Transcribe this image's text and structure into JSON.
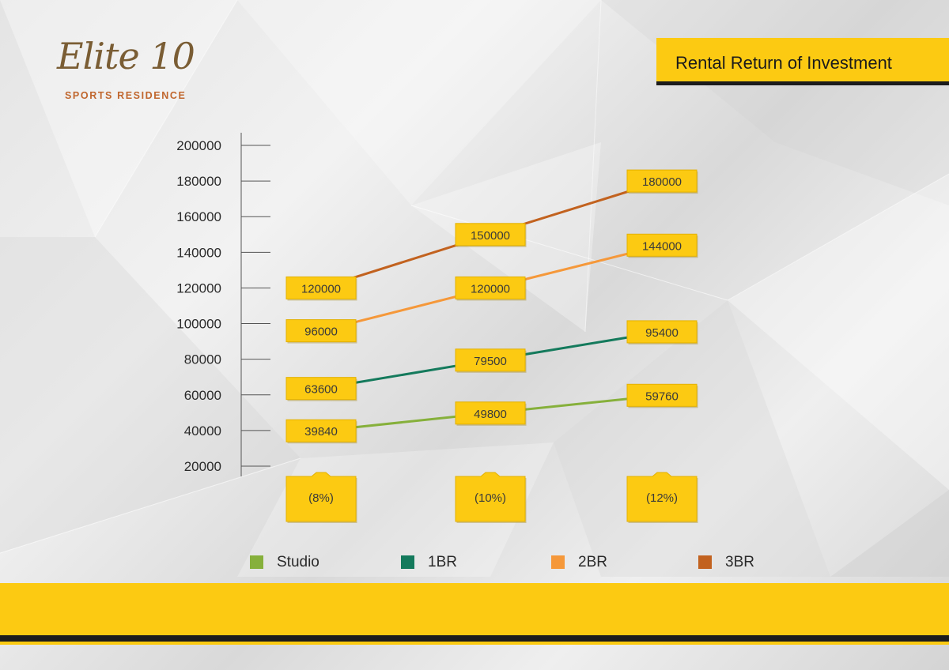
{
  "branding": {
    "logo_script": "Elite 10",
    "logo_subtitle": "SPORTS RESIDENCE"
  },
  "header": {
    "title": "Rental Return of Investment"
  },
  "colors": {
    "accent_yellow": "#fcca12",
    "dark": "#1c1c1c",
    "studio": "#86b03b",
    "1br": "#147a5c",
    "2br": "#f5983a",
    "3br": "#c2621f"
  },
  "chart_data": {
    "type": "line",
    "title": "Rental Return of Investment",
    "xlabel": "",
    "ylabel": "",
    "categories": [
      "(8%)",
      "(10%)",
      "(12%)"
    ],
    "ylim": [
      20000,
      200000
    ],
    "yticks": [
      "200000",
      "180000",
      "160000",
      "140000",
      "120000",
      "100000",
      "80000",
      "60000",
      "40000",
      "20000"
    ],
    "grid": false,
    "legend_position": "bottom",
    "series": [
      {
        "name": "Studio",
        "color": "#86b03b",
        "values": [
          39840,
          49800,
          59760
        ],
        "labels": [
          "39840",
          "49800",
          "59760"
        ]
      },
      {
        "name": "1BR",
        "color": "#147a5c",
        "values": [
          63600,
          79500,
          95400
        ],
        "labels": [
          "63600",
          "79500",
          "95400"
        ]
      },
      {
        "name": "2BR",
        "color": "#f5983a",
        "values": [
          96000,
          120000,
          144000
        ],
        "labels": [
          "96000",
          "120000",
          "144000"
        ]
      },
      {
        "name": "3BR",
        "color": "#c2621f",
        "values": [
          120000,
          150000,
          180000
        ],
        "labels": [
          "120000",
          "150000",
          "180000"
        ]
      }
    ]
  },
  "legend": {
    "items": [
      {
        "label": "Studio",
        "color": "#86b03b"
      },
      {
        "label": "1BR",
        "color": "#147a5c"
      },
      {
        "label": "2BR",
        "color": "#f5983a"
      },
      {
        "label": "3BR",
        "color": "#c2621f"
      }
    ]
  }
}
